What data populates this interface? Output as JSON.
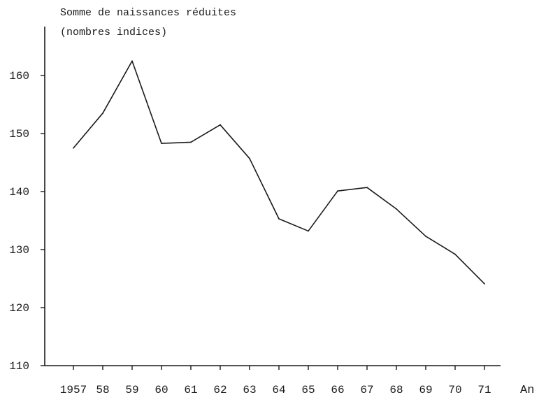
{
  "chart_data": {
    "type": "line",
    "ylabel_line1": "Somme de naissances réduites",
    "ylabel_line2": "(nombres indices)",
    "xlabel": "An",
    "x_tick_labels": [
      "1957",
      "58",
      "59",
      "60",
      "61",
      "62",
      "63",
      "64",
      "65",
      "66",
      "67",
      "68",
      "69",
      "70",
      "71"
    ],
    "x": [
      1957,
      1958,
      1959,
      1960,
      1961,
      1962,
      1963,
      1964,
      1965,
      1966,
      1967,
      1968,
      1969,
      1970,
      1971
    ],
    "values": [
      147.5,
      153.5,
      162.5,
      148.3,
      148.5,
      151.5,
      145.7,
      135.3,
      133.2,
      140.1,
      140.7,
      137.0,
      132.3,
      129.2,
      124.1
    ],
    "ylim": [
      110,
      170
    ],
    "y_ticks": [
      110,
      120,
      130,
      140,
      150,
      160
    ],
    "grid": false
  }
}
